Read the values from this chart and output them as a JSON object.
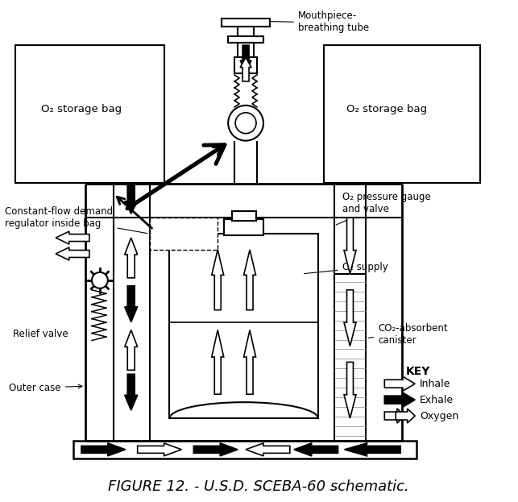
{
  "title": "FIGURE 12. - U.S.D. SCEBA-60 schematic.",
  "labels": {
    "mouthpiece": "Mouthpiece-\nbreathing tube",
    "o2_bag_left": "O₂ storage bag",
    "o2_bag_right": "O₂ storage bag",
    "regulator": "Constant-flow demand\nregulator inside bag",
    "o2_pressure": "O₂ pressure gauge\nand valve",
    "o2_supply": "O₂ supply",
    "relief_valve": "Relief valve",
    "outer_case": "Outer case",
    "co2_canister": "CO₂-absorbent\ncanister",
    "key": "KEY",
    "inhale": "Inhale",
    "exhale": "Exhale",
    "oxygen": "Oxygen"
  }
}
